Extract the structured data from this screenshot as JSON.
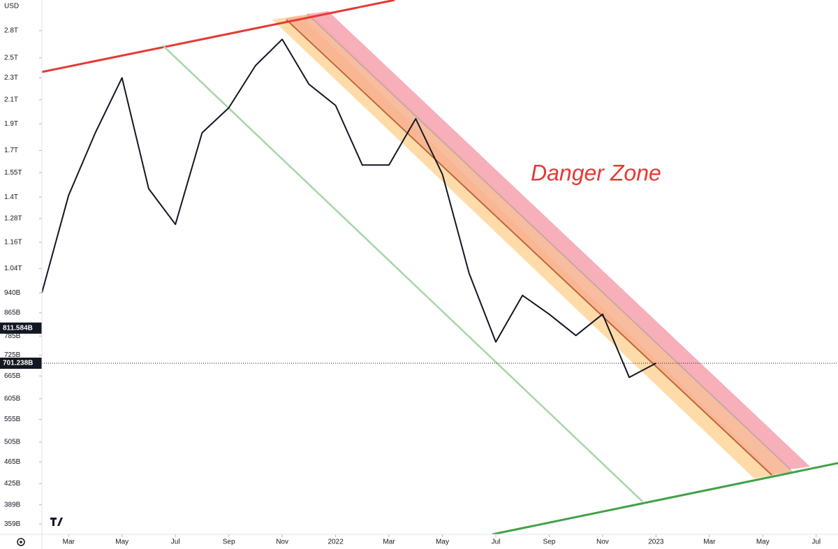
{
  "chart_data": {
    "type": "line",
    "log_scale": true,
    "y_unit": "USD",
    "annotation": "Danger Zone",
    "series": [
      {
        "name": null,
        "color": "#131722",
        "x": [
          "2021-02",
          "2021-03",
          "2021-04",
          "2021-05",
          "2021-06",
          "2021-07",
          "2021-08",
          "2021-09",
          "2021-10",
          "2021-11",
          "2021-12",
          "2022-01",
          "2022-02",
          "2022-03",
          "2022-04",
          "2022-05",
          "2022-06",
          "2022-07",
          "2022-08",
          "2022-09",
          "2022-10",
          "2022-11",
          "2022-12",
          "2023-01"
        ],
        "values": [
          940000000000.0,
          1410000000000.0,
          1830000000000.0,
          2300000000000.0,
          1450000000000.0,
          1250000000000.0,
          1830000000000.0,
          2030000000000.0,
          2420000000000.0,
          2700000000000.0,
          2240000000000.0,
          2050000000000.0,
          1600000000000.0,
          1600000000000.0,
          1940000000000.0,
          1540000000000.0,
          1020000000000.0,
          766000000000.0,
          930000000000.0,
          860000000000.0,
          787000000000.0,
          860000000000.0,
          661000000000.0,
          701238000000.0
        ]
      }
    ],
    "price_markers": [
      {
        "value": 811584000000.0,
        "label": "811.584B"
      },
      {
        "value": 701238000000.0,
        "label": "701.238B"
      }
    ],
    "xlim": [
      "2021-02",
      "2023-08"
    ],
    "xticks": [
      {
        "value": "2021-03",
        "label": "Mar"
      },
      {
        "value": "2021-05",
        "label": "May"
      },
      {
        "value": "2021-07",
        "label": "Jul"
      },
      {
        "value": "2021-09",
        "label": "Sep"
      },
      {
        "value": "2021-11",
        "label": "Nov"
      },
      {
        "value": "2022-01",
        "label": "2022"
      },
      {
        "value": "2022-03",
        "label": "Mar"
      },
      {
        "value": "2022-05",
        "label": "May"
      },
      {
        "value": "2022-07",
        "label": "Jul"
      },
      {
        "value": "2022-09",
        "label": "Sep"
      },
      {
        "value": "2022-11",
        "label": "Nov"
      },
      {
        "value": "2023-01",
        "label": "2023"
      },
      {
        "value": "2023-03",
        "label": "Mar"
      },
      {
        "value": "2023-05",
        "label": "May"
      },
      {
        "value": "2023-07",
        "label": "Jul"
      }
    ],
    "ylim": [
      344000000000.0,
      3180000000000.0
    ],
    "yticks": [
      {
        "value": 2800000000000.0,
        "label": "2.8T"
      },
      {
        "value": 2500000000000.0,
        "label": "2.5T"
      },
      {
        "value": 2300000000000.0,
        "label": "2.3T"
      },
      {
        "value": 2100000000000.0,
        "label": "2.1T"
      },
      {
        "value": 1900000000000.0,
        "label": "1.9T"
      },
      {
        "value": 1700000000000.0,
        "label": "1.7T"
      },
      {
        "value": 1550000000000.0,
        "label": "1.55T"
      },
      {
        "value": 1400000000000.0,
        "label": "1.4T"
      },
      {
        "value": 1280000000000.0,
        "label": "1.28T"
      },
      {
        "value": 1160000000000.0,
        "label": "1.16T"
      },
      {
        "value": 1040000000000.0,
        "label": "1.04T"
      },
      {
        "value": 940000000000.0,
        "label": "940B"
      },
      {
        "value": 865000000000.0,
        "label": "865B"
      },
      {
        "value": 785000000000.0,
        "label": "785B"
      },
      {
        "value": 725000000000.0,
        "label": "725B"
      },
      {
        "value": 665000000000.0,
        "label": "665B"
      },
      {
        "value": 605000000000.0,
        "label": "605B"
      },
      {
        "value": 555000000000.0,
        "label": "555B"
      },
      {
        "value": 505000000000.0,
        "label": "505B"
      },
      {
        "value": 465000000000.0,
        "label": "465B"
      },
      {
        "value": 425000000000.0,
        "label": "425B"
      },
      {
        "value": 389000000000.0,
        "label": "389B"
      },
      {
        "value": 359000000000.0,
        "label": "359B"
      }
    ]
  }
}
